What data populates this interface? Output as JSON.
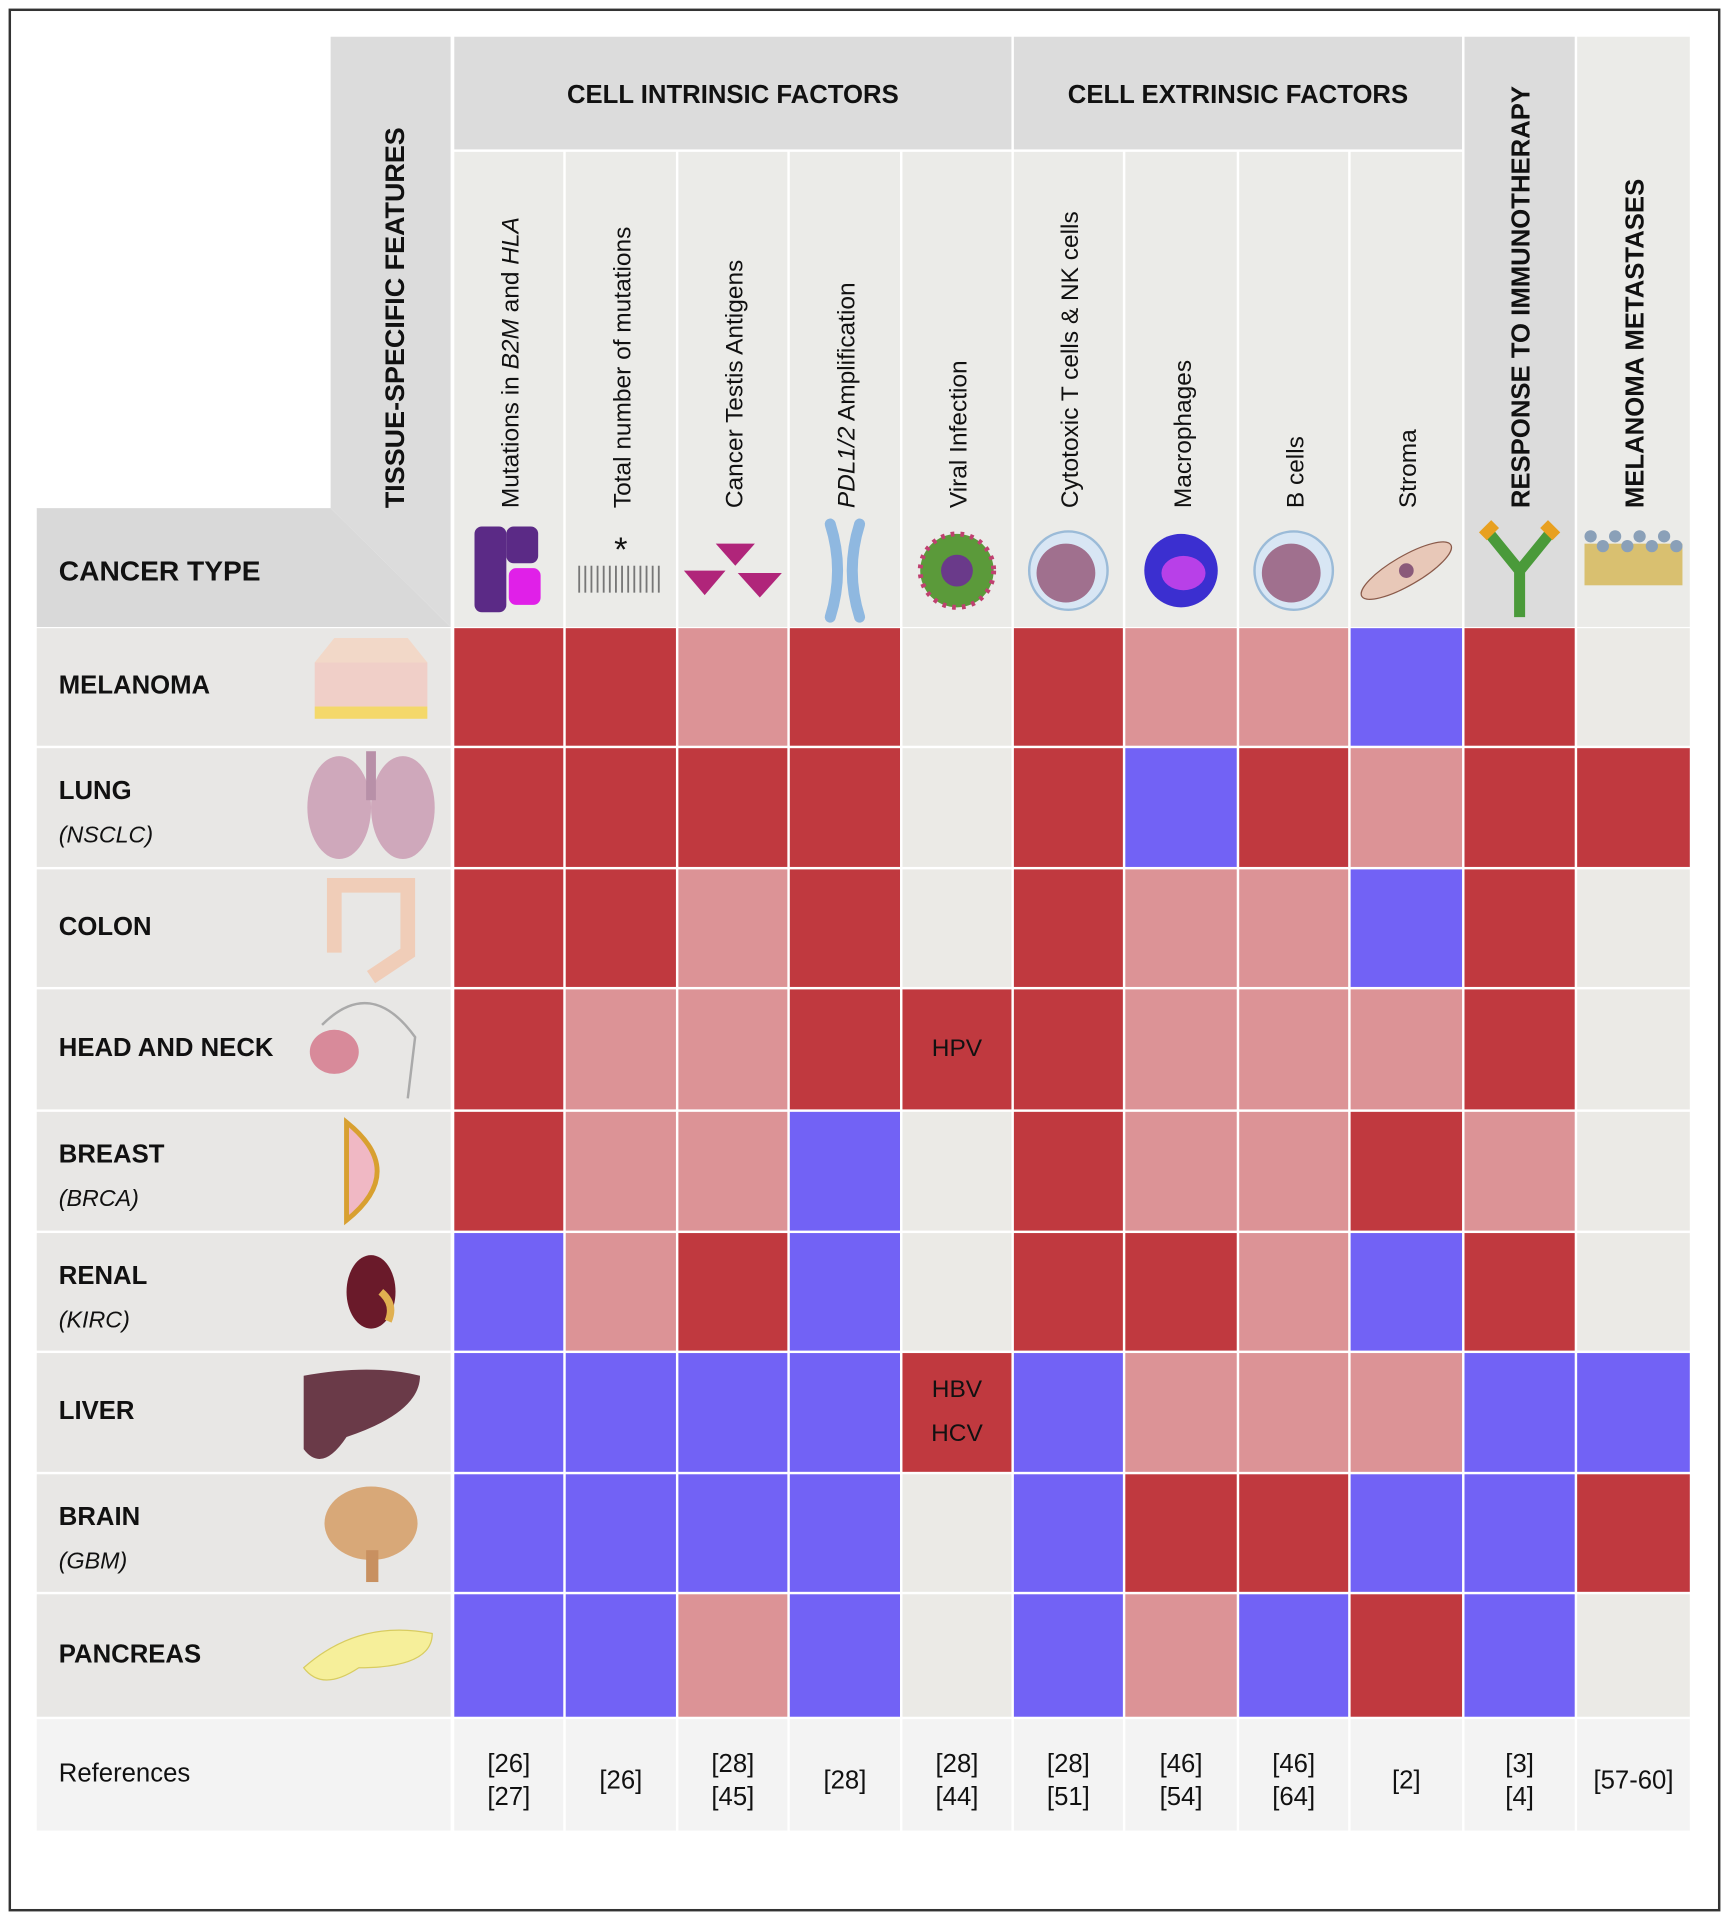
{
  "tissue_header": "TISSUE-SPECIFIC FEATURES",
  "cancer_type_header": "CANCER TYPE",
  "groups": [
    {
      "title": "CELL INTRINSIC FACTORS"
    },
    {
      "title": "CELL EXTRINSIC FACTORS"
    }
  ],
  "columns": [
    {
      "label": [
        {
          "text": "Mutations in "
        },
        {
          "text": "B2M",
          "italic": true
        },
        {
          "text": " and "
        },
        {
          "text": "HLA",
          "italic": true
        }
      ],
      "references": [
        "[26]",
        "[27]"
      ]
    },
    {
      "label": [
        {
          "text": "Total number of mutations"
        }
      ],
      "references": [
        "[26]"
      ]
    },
    {
      "label": [
        {
          "text": "Cancer Testis Antigens"
        }
      ],
      "references": [
        "[28]",
        "[45]"
      ]
    },
    {
      "label": [
        {
          "text": "PDL1/2",
          "italic": true
        },
        {
          "text": " Amplification"
        }
      ],
      "references": [
        "[28]"
      ]
    },
    {
      "label": [
        {
          "text": "Viral Infection"
        }
      ],
      "references": [
        "[28]",
        "[44]"
      ]
    },
    {
      "label": [
        {
          "text": "Cytotoxic T cells & NK cells"
        }
      ],
      "references": [
        "[28]",
        "[51]"
      ]
    },
    {
      "label": [
        {
          "text": "Macrophages"
        }
      ],
      "references": [
        "[46]",
        "[54]"
      ]
    },
    {
      "label": [
        {
          "text": "B cells"
        }
      ],
      "references": [
        "[46]",
        "[64]"
      ]
    },
    {
      "label": [
        {
          "text": "Stroma"
        }
      ],
      "references": [
        "[2]"
      ]
    },
    {
      "label": [
        {
          "text": "RESPONSE TO IMMUNOTHERAPY"
        }
      ],
      "bold": true,
      "references": [
        "[3]",
        "[4]"
      ]
    },
    {
      "label": [
        {
          "text": "MELANOMA METASTASES"
        }
      ],
      "bold": true,
      "references": [
        "[57-60]"
      ]
    }
  ],
  "rows": [
    {
      "name": "MELANOMA",
      "cells": [
        "#c0393f",
        "#c0393f",
        "#dc9396",
        "#c0393f",
        "#ebeae6",
        "#c0393f",
        "#dc9396",
        "#dc9396",
        "#7262f5",
        "#c0393f",
        "#ebeae6"
      ]
    },
    {
      "name": "LUNG",
      "subtitle": "(NSCLC)",
      "cells": [
        "#c0393f",
        "#c0393f",
        "#c0393f",
        "#c0393f",
        "#ebeae6",
        "#c0393f",
        "#7262f5",
        "#c0393f",
        "#dc9396",
        "#c0393f",
        "#c0393f"
      ]
    },
    {
      "name": "COLON",
      "cells": [
        "#c0393f",
        "#c0393f",
        "#dc9396",
        "#c0393f",
        "#ebeae6",
        "#c0393f",
        "#dc9396",
        "#dc9396",
        "#7262f5",
        "#c0393f",
        "#ebeae6"
      ]
    },
    {
      "name": "HEAD AND NECK",
      "cells": [
        "#c0393f",
        "#dc9396",
        "#dc9396",
        "#c0393f",
        "#c0393f",
        "#c0393f",
        "#dc9396",
        "#dc9396",
        "#dc9396",
        "#c0393f",
        "#ebeae6"
      ],
      "viral_text": [
        "HPV"
      ]
    },
    {
      "name": "BREAST",
      "subtitle": "(BRCA)",
      "cells": [
        "#c0393f",
        "#dc9396",
        "#dc9396",
        "#7262f5",
        "#ebeae6",
        "#c0393f",
        "#dc9396",
        "#dc9396",
        "#c0393f",
        "#dc9396",
        "#ebeae6"
      ]
    },
    {
      "name": "RENAL",
      "subtitle": "(KIRC)",
      "cells": [
        "#7262f5",
        "#dc9396",
        "#c0393f",
        "#7262f5",
        "#ebeae6",
        "#c0393f",
        "#c0393f",
        "#dc9396",
        "#7262f5",
        "#c0393f",
        "#ebeae6"
      ]
    },
    {
      "name": "LIVER",
      "cells": [
        "#7262f5",
        "#7262f5",
        "#7262f5",
        "#7262f5",
        "#c0393f",
        "#7262f5",
        "#dc9396",
        "#dc9396",
        "#dc9396",
        "#7262f5",
        "#7262f5"
      ],
      "viral_text": [
        "HBV",
        "HCV"
      ]
    },
    {
      "name": "BRAIN",
      "subtitle": "(GBM)",
      "cells": [
        "#7262f5",
        "#7262f5",
        "#7262f5",
        "#7262f5",
        "#ebeae6",
        "#7262f5",
        "#c0393f",
        "#c0393f",
        "#7262f5",
        "#7262f5",
        "#c0393f"
      ]
    },
    {
      "name": "PANCREAS",
      "cells": [
        "#7262f5",
        "#7262f5",
        "#dc9396",
        "#7262f5",
        "#ebeae6",
        "#7262f5",
        "#dc9396",
        "#7262f5",
        "#c0393f",
        "#7262f5",
        "#ebeae6"
      ]
    }
  ],
  "references_label": "References"
}
